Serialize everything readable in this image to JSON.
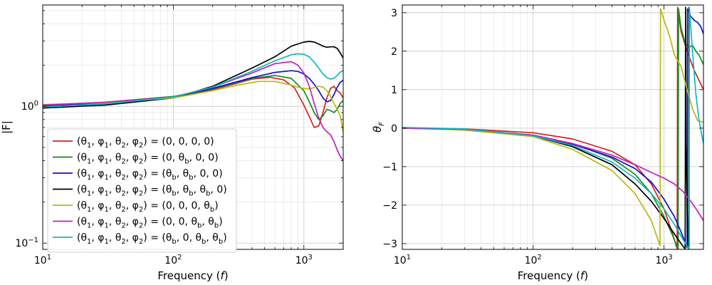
{
  "chart_data": [
    {
      "type": "line",
      "title": "",
      "xlabel": "Frequency (f)",
      "ylabel": "|F|",
      "xscale": "log",
      "yscale": "log",
      "xlim": [
        10,
        2000
      ],
      "ylim": [
        0.09,
        5.5
      ],
      "xticks": [
        {
          "value": 10,
          "label": "10"
        },
        {
          "value": 100,
          "label": "10"
        },
        {
          "value": 1000,
          "label": "10"
        }
      ],
      "xtick_exponents": [
        "1",
        "2",
        "3"
      ],
      "yticks": [
        {
          "value": 0.1,
          "label": "10",
          "exp": "−1"
        },
        {
          "value": 1,
          "label": "10",
          "exp": "0"
        }
      ],
      "grid": true,
      "legend_position": "lower-left",
      "series": [
        {
          "name": "(θ1, φ1, θ2, φ2) = (0, 0, 0, 0)",
          "legend": [
            "(θ",
            "1",
            ", φ",
            "1",
            ", θ",
            "2",
            ", φ",
            "2",
            ") = (0, 0, 0, 0)"
          ],
          "color": "#d62020",
          "x": [
            10,
            30,
            100,
            200,
            400,
            550,
            700,
            850,
            1000,
            1100,
            1200,
            1300,
            1400,
            1500,
            1600,
            1700,
            1800,
            1900,
            2000
          ],
          "y": [
            1.02,
            1.06,
            1.17,
            1.32,
            1.58,
            1.63,
            1.56,
            1.36,
            1.02,
            0.84,
            0.7,
            0.72,
            0.9,
            1.15,
            1.35,
            1.4,
            1.3,
            1.25,
            1.15
          ]
        },
        {
          "name": "(θ1, φ1, θ2, φ2) = (0, θb, 0, 0)",
          "legend": [
            "(θ",
            "1",
            ", φ",
            "1",
            ", θ",
            "2",
            ", φ",
            "2",
            ") = (0, θ",
            "b",
            ", 0, 0)"
          ],
          "color": "#1a8a1a",
          "x": [
            10,
            30,
            100,
            200,
            400,
            600,
            800,
            1000,
            1100,
            1200,
            1300,
            1400,
            1500,
            1600,
            1700,
            1800,
            1900,
            2000
          ],
          "y": [
            1.02,
            1.07,
            1.18,
            1.34,
            1.6,
            1.68,
            1.6,
            1.3,
            1.08,
            0.9,
            0.8,
            0.85,
            0.95,
            0.93,
            0.9,
            0.95,
            1.05,
            1.1
          ]
        },
        {
          "name": "(θ1, φ1, θ2, φ2) = (θb, θb, 0, 0)",
          "legend": [
            "(θ",
            "1",
            ", φ",
            "1",
            ", θ",
            "2",
            ", φ",
            "2",
            ") = (θ",
            "b",
            ", θ",
            "b",
            ", 0, 0)"
          ],
          "color": "#1010c8",
          "x": [
            10,
            30,
            100,
            200,
            400,
            600,
            800,
            900,
            1000,
            1100,
            1200,
            1300,
            1400,
            1500,
            1600,
            1700,
            1800,
            1900,
            2000
          ],
          "y": [
            1.0,
            1.05,
            1.17,
            1.35,
            1.62,
            1.77,
            1.82,
            1.8,
            1.72,
            1.6,
            1.45,
            1.3,
            1.15,
            1.08,
            1.1,
            1.22,
            1.38,
            1.5,
            1.55
          ]
        },
        {
          "name": "(θ1, φ1, θ2, φ2) = (θb, θb, θb, 0)",
          "legend": [
            "(θ",
            "1",
            ", φ",
            "1",
            ", θ",
            "2",
            ", φ",
            "2",
            ") = (θ",
            "b",
            ", θ",
            "b",
            ", θ",
            "b",
            ", 0)"
          ],
          "color": "#000000",
          "x": [
            10,
            30,
            100,
            200,
            400,
            600,
            800,
            1000,
            1100,
            1200,
            1300,
            1400,
            1500,
            1600,
            1700,
            1800,
            1900,
            2000
          ],
          "y": [
            0.97,
            1.02,
            1.15,
            1.4,
            1.9,
            2.3,
            2.75,
            2.95,
            2.98,
            2.95,
            2.85,
            2.75,
            2.7,
            2.72,
            2.72,
            2.65,
            2.45,
            2.25
          ]
        },
        {
          "name": "(θ1, φ1, θ2, φ2) = (0, 0, 0, θb)",
          "legend": [
            "(θ",
            "1",
            ", φ",
            "1",
            ", θ",
            "2",
            ", φ",
            "2",
            ") = (0, 0, 0, θ",
            "b",
            ")"
          ],
          "color": "#b8b810",
          "x": [
            10,
            30,
            100,
            200,
            300,
            450,
            600,
            750,
            900,
            1000,
            1100,
            1200,
            1300,
            1400,
            1500,
            1600,
            1700,
            1800,
            1900,
            2000
          ],
          "y": [
            1.03,
            1.06,
            1.15,
            1.3,
            1.42,
            1.52,
            1.52,
            1.45,
            1.38,
            1.35,
            1.34,
            1.37,
            1.4,
            1.38,
            1.3,
            1.18,
            1.05,
            0.95,
            0.85,
            0.65
          ]
        },
        {
          "name": "(θ1, φ1, θ2, φ2) = (0, 0, θb, θb)",
          "legend": [
            "(θ",
            "1",
            ", φ",
            "1",
            ", θ",
            "2",
            ", φ",
            "2",
            ") = (0, 0, θ",
            "b",
            ", θ",
            "b",
            ")"
          ],
          "color": "#c020c0",
          "x": [
            10,
            30,
            100,
            200,
            400,
            600,
            800,
            900,
            1000,
            1100,
            1200,
            1300,
            1400,
            1500,
            1600,
            1700,
            1800,
            1900,
            2000
          ],
          "y": [
            1.02,
            1.07,
            1.17,
            1.38,
            1.75,
            2.05,
            2.12,
            2.0,
            1.75,
            1.4,
            1.05,
            0.82,
            0.7,
            0.65,
            0.62,
            0.55,
            0.48,
            0.43,
            0.4
          ]
        },
        {
          "name": "(θ1, φ1, θ2, φ2) = (θb, 0, θb, θb)",
          "legend": [
            "(θ",
            "1",
            ", φ",
            "1",
            ", θ",
            "2",
            ", φ",
            "2",
            ") = (θ",
            "b",
            ", 0, θ",
            "b",
            ", θ",
            "b",
            ")"
          ],
          "color": "#10b8c0",
          "x": [
            10,
            30,
            100,
            200,
            400,
            600,
            800,
            900,
            1000,
            1100,
            1200,
            1300,
            1400,
            1500,
            1600,
            1700,
            1800,
            1900,
            2000
          ],
          "y": [
            0.99,
            1.04,
            1.17,
            1.38,
            1.8,
            2.15,
            2.38,
            2.42,
            2.4,
            2.3,
            2.1,
            1.9,
            1.72,
            1.62,
            1.58,
            1.6,
            1.68,
            1.78,
            1.82
          ]
        }
      ]
    },
    {
      "type": "line",
      "title": "",
      "xlabel": "Frequency (f)",
      "ylabel": "θF",
      "xscale": "log",
      "yscale": "linear",
      "xlim": [
        10,
        2000
      ],
      "ylim": [
        -3.15,
        3.2
      ],
      "xticks": [
        {
          "value": 10,
          "label": "10"
        },
        {
          "value": 100,
          "label": "10"
        },
        {
          "value": 1000,
          "label": "10"
        }
      ],
      "xtick_exponents": [
        "1",
        "2",
        "3"
      ],
      "yticks": [
        -3,
        -2,
        -1,
        0,
        1,
        2,
        3
      ],
      "ytick_labels": [
        "−3",
        "−2",
        "−1",
        "0",
        "1",
        "2",
        "3"
      ],
      "grid": true,
      "series": [
        {
          "name": "(0, 0, 0, 0)",
          "color": "#d62020",
          "x": [
            10,
            30,
            100,
            200,
            400,
            600,
            800,
            1000,
            1150,
            1260,
            1270,
            1350,
            1500,
            1700,
            2000
          ],
          "y": [
            0.0,
            -0.02,
            -0.12,
            -0.28,
            -0.6,
            -0.95,
            -1.45,
            -2.1,
            -2.7,
            -3.14,
            3.14,
            2.5,
            2.0,
            1.5,
            1.0
          ]
        },
        {
          "name": "(0, θb, 0, 0)",
          "color": "#1a8a1a",
          "x": [
            10,
            30,
            100,
            200,
            400,
            600,
            800,
            1000,
            1150,
            1280,
            1290,
            1350,
            1450,
            1550,
            1650,
            1750,
            1850,
            2000
          ],
          "y": [
            0.0,
            -0.03,
            -0.18,
            -0.4,
            -0.78,
            -1.2,
            -1.7,
            -2.3,
            -2.75,
            -3.14,
            3.1,
            2.6,
            2.2,
            2.1,
            2.15,
            2.0,
            1.9,
            1.65
          ]
        },
        {
          "name": "(θb, θb, 0, 0)",
          "color": "#1010c8",
          "x": [
            10,
            30,
            100,
            200,
            400,
            600,
            800,
            1000,
            1200,
            1350,
            1500,
            1510,
            1600,
            1700,
            1800,
            1900,
            2000
          ],
          "y": [
            0.0,
            -0.03,
            -0.2,
            -0.42,
            -0.75,
            -1.05,
            -1.4,
            -1.85,
            -2.3,
            -2.7,
            -3.1,
            3.1,
            2.9,
            2.8,
            2.75,
            2.65,
            2.45
          ]
        },
        {
          "name": "(θb, θb, θb, 0)",
          "color": "#000000",
          "x": [
            10,
            30,
            100,
            200,
            400,
            600,
            800,
            1000,
            1200,
            1350,
            1450,
            1460,
            1470,
            1520,
            1540,
            1550,
            1555
          ],
          "y": [
            0.0,
            -0.03,
            -0.2,
            -0.48,
            -0.95,
            -1.45,
            -1.9,
            -2.35,
            -2.75,
            -3.0,
            -3.14,
            3.14,
            -0.4,
            -3.1,
            -3.14,
            3.14,
            -3.1
          ]
        },
        {
          "name": "(0, 0, 0, θb)",
          "color": "#b8b810",
          "x": [
            10,
            30,
            100,
            200,
            400,
            600,
            800,
            930,
            940,
            1000,
            1100,
            1200,
            1350,
            1500,
            1650,
            1800,
            2000
          ],
          "y": [
            0.0,
            -0.05,
            -0.22,
            -0.55,
            -1.1,
            -1.7,
            -2.4,
            -3.05,
            3.1,
            2.8,
            2.4,
            1.9,
            1.6,
            1.0,
            0.5,
            0.2,
            0.15
          ]
        },
        {
          "name": "(0, 0, θb, θb)",
          "color": "#c020c0",
          "x": [
            10,
            30,
            100,
            200,
            400,
            600,
            800,
            1000,
            1200,
            1400,
            1600,
            1800,
            2000
          ],
          "y": [
            0.0,
            -0.03,
            -0.18,
            -0.4,
            -0.7,
            -0.95,
            -1.15,
            -1.3,
            -1.45,
            -1.65,
            -1.9,
            -2.15,
            -2.4
          ]
        },
        {
          "name": "(θb, 0, θb, θb)",
          "color": "#10b8c0",
          "x": [
            10,
            30,
            100,
            200,
            400,
            600,
            800,
            1000,
            1200,
            1400,
            1550,
            1560,
            1650,
            1750,
            1850,
            2000
          ],
          "y": [
            0.02,
            -0.02,
            -0.2,
            -0.45,
            -0.88,
            -1.3,
            -1.7,
            -2.1,
            -2.5,
            -2.9,
            -3.14,
            3.14,
            2.0,
            0.9,
            0.2,
            -0.4
          ]
        }
      ]
    }
  ]
}
